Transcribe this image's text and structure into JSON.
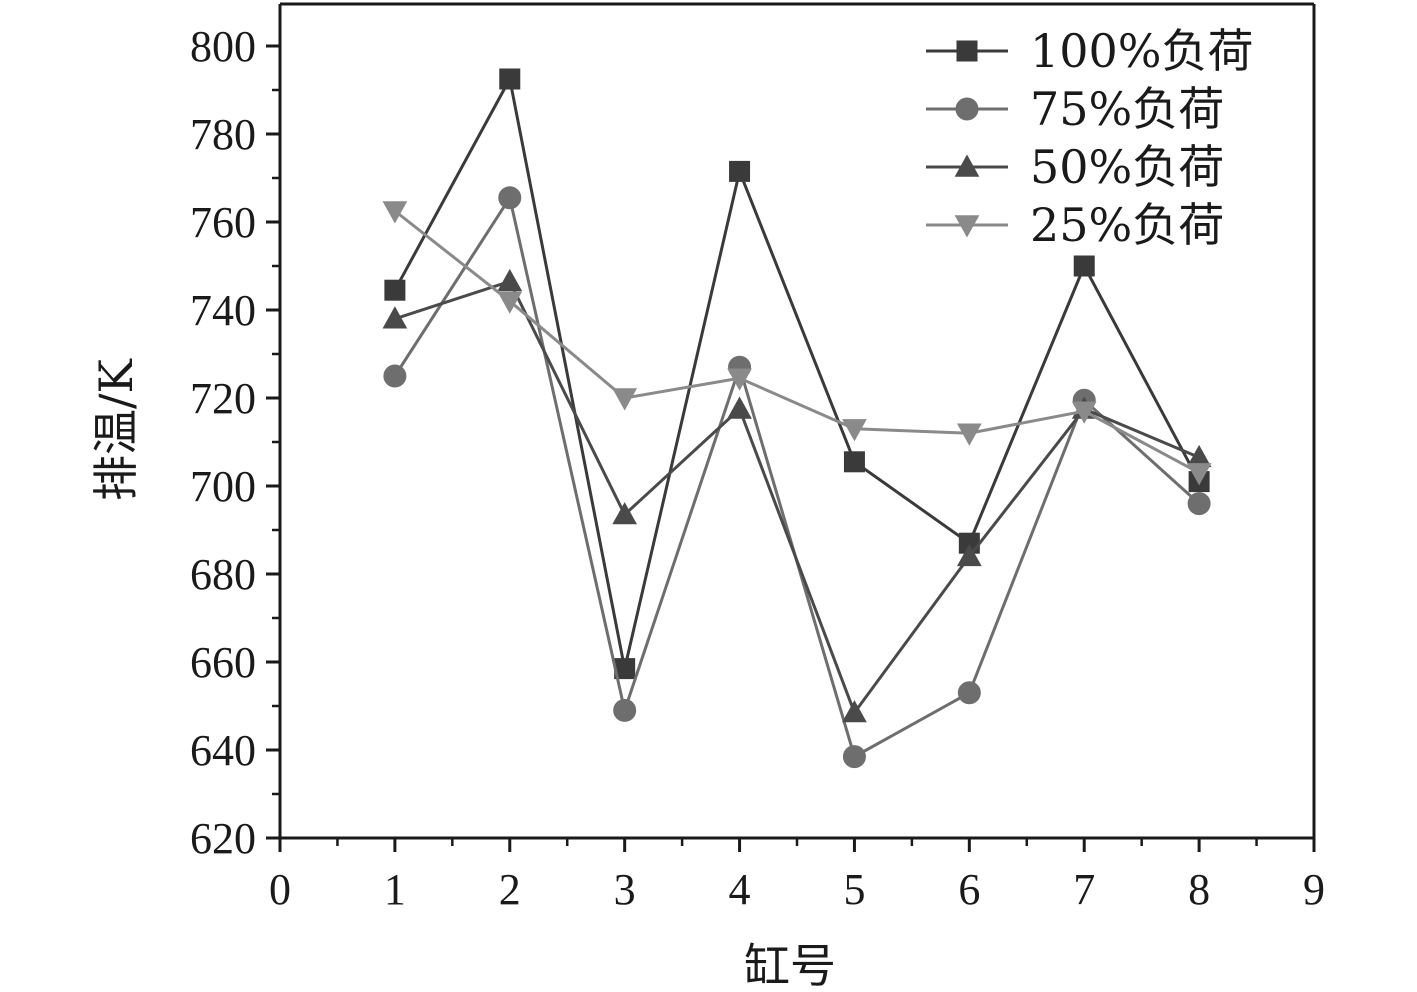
{
  "chart_data": {
    "type": "line",
    "title": "",
    "xlabel": "缸号",
    "ylabel": "排温/K",
    "xlim": [
      0,
      9
    ],
    "ylim": [
      620,
      810
    ],
    "x_ticks": [
      "0",
      "1",
      "2",
      "3",
      "4",
      "5",
      "6",
      "7",
      "8",
      "9"
    ],
    "y_ticks": [
      "620",
      "640",
      "660",
      "680",
      "700",
      "720",
      "740",
      "760",
      "780",
      "800"
    ],
    "x": [
      1,
      2,
      3,
      4,
      5,
      6,
      7,
      8
    ],
    "legend_position": "top-right",
    "grid": false,
    "series": [
      {
        "name": "100%负荷",
        "marker": "square",
        "color": "#3a3a3a",
        "values": [
          744.5,
          792.5,
          658.5,
          771.5,
          705.5,
          687,
          750,
          701
        ]
      },
      {
        "name": "75%负荷",
        "marker": "circle",
        "color": "#6e6e6e",
        "values": [
          725,
          765.5,
          649,
          727,
          638.5,
          653,
          719.5,
          696
        ]
      },
      {
        "name": "50%负荷",
        "marker": "triangle-up",
        "color": "#4a4a4a",
        "values": [
          738,
          746.5,
          693.5,
          717.5,
          648.5,
          684,
          717.5,
          706.5
        ]
      },
      {
        "name": "25%负荷",
        "marker": "triangle-down",
        "color": "#8a8a8a",
        "values": [
          762.5,
          742,
          720,
          724.5,
          713,
          712,
          717,
          703
        ]
      }
    ]
  }
}
